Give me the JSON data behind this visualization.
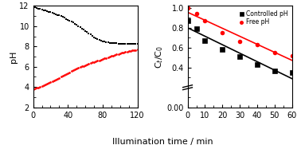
{
  "left": {
    "black_x": [
      0,
      2,
      4,
      6,
      8,
      10,
      12,
      14,
      16,
      18,
      20,
      22,
      24,
      26,
      28,
      30,
      32,
      34,
      36,
      38,
      40,
      42,
      44,
      46,
      48,
      50,
      52,
      54,
      56,
      58,
      60,
      62,
      64,
      66,
      68,
      70,
      72,
      74,
      76,
      78,
      80,
      82,
      84,
      86,
      88,
      90,
      92,
      94,
      96,
      98,
      100,
      102,
      104,
      106,
      108,
      110,
      112,
      114,
      116,
      118,
      120
    ],
    "black_y": [
      11.9,
      11.85,
      11.8,
      11.75,
      11.7,
      11.65,
      11.6,
      11.55,
      11.5,
      11.44,
      11.38,
      11.32,
      11.26,
      11.2,
      11.13,
      11.06,
      10.98,
      10.9,
      10.82,
      10.73,
      10.64,
      10.55,
      10.45,
      10.35,
      10.24,
      10.13,
      10.02,
      9.9,
      9.78,
      9.66,
      9.54,
      9.41,
      9.29,
      9.17,
      9.05,
      8.93,
      8.83,
      8.74,
      8.65,
      8.58,
      8.52,
      8.47,
      8.43,
      8.4,
      8.37,
      8.35,
      8.33,
      8.32,
      8.31,
      8.3,
      8.3,
      8.29,
      8.29,
      8.28,
      8.28,
      8.27,
      8.27,
      8.26,
      8.26,
      8.25,
      8.25
    ],
    "red_x": [
      0,
      2,
      4,
      6,
      8,
      10,
      12,
      14,
      16,
      18,
      20,
      22,
      24,
      26,
      28,
      30,
      32,
      34,
      36,
      38,
      40,
      42,
      44,
      46,
      48,
      50,
      52,
      54,
      56,
      58,
      60,
      62,
      64,
      66,
      68,
      70,
      72,
      74,
      76,
      78,
      80,
      82,
      84,
      86,
      88,
      90,
      92,
      94,
      96,
      98,
      100,
      102,
      104,
      106,
      108,
      110,
      112,
      114,
      116,
      118,
      120
    ],
    "red_y": [
      3.8,
      3.85,
      3.9,
      3.96,
      4.02,
      4.08,
      4.15,
      4.22,
      4.3,
      4.38,
      4.46,
      4.55,
      4.64,
      4.73,
      4.82,
      4.91,
      5.0,
      5.1,
      5.19,
      5.28,
      5.37,
      5.46,
      5.55,
      5.64,
      5.72,
      5.8,
      5.88,
      5.96,
      6.03,
      6.1,
      6.17,
      6.24,
      6.3,
      6.36,
      6.42,
      6.48,
      6.54,
      6.59,
      6.65,
      6.7,
      6.76,
      6.82,
      6.88,
      6.94,
      7.0,
      7.06,
      7.12,
      7.17,
      7.22,
      7.27,
      7.32,
      7.37,
      7.42,
      7.46,
      7.5,
      7.54,
      7.58,
      7.61,
      7.64,
      7.67,
      7.7
    ],
    "ylabel": "pH",
    "xlim": [
      0,
      120
    ],
    "ylim": [
      2,
      12
    ],
    "yticks": [
      2,
      4,
      6,
      8,
      10,
      12
    ],
    "xticks": [
      0,
      40,
      80,
      120
    ]
  },
  "right": {
    "black_x": [
      0,
      5,
      10,
      20,
      30,
      40,
      50,
      60
    ],
    "black_y": [
      0.87,
      0.79,
      0.67,
      0.58,
      0.51,
      0.43,
      0.37,
      0.35
    ],
    "red_x": [
      0,
      5,
      10,
      20,
      30,
      40,
      50,
      60
    ],
    "red_y": [
      1.0,
      0.94,
      0.87,
      0.75,
      0.66,
      0.63,
      0.55,
      0.52
    ],
    "ylabel": "C$_t$/C$_0$",
    "xlim": [
      0,
      60
    ],
    "ylim": [
      0.0,
      1.0
    ],
    "yticks": [
      0.0,
      0.4,
      0.6,
      0.8,
      1.0
    ],
    "yticklabels": [
      "0.00",
      "0.4",
      "0.6",
      "0.8",
      "1.0"
    ],
    "xticks": [
      0,
      10,
      20,
      30,
      40,
      50,
      60
    ],
    "legend_black": "Controlled pH",
    "legend_red": "Free pH"
  },
  "xlabel": "Illumination time / min",
  "black_color": "#000000",
  "red_color": "#ff0000"
}
